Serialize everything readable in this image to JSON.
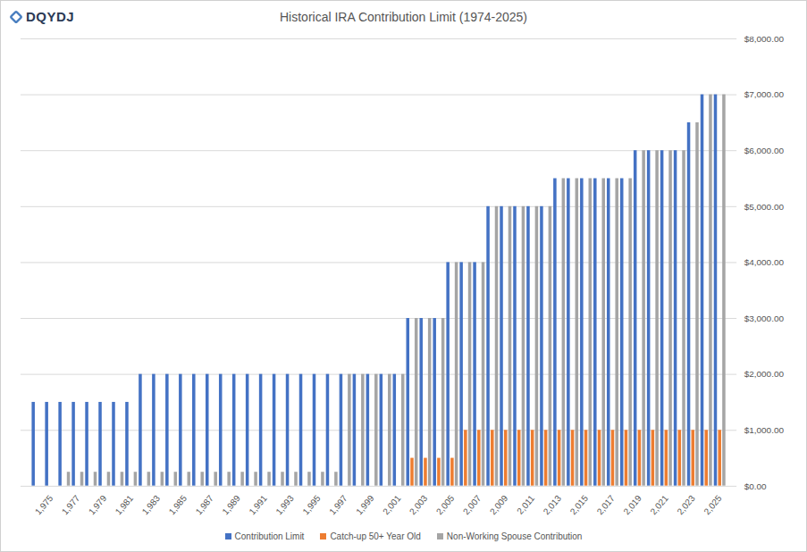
{
  "chart_data": {
    "type": "bar",
    "title": "Historical IRA Contribution Limit (1974-2025)",
    "logo": "DQYDJ",
    "categories": [
      null,
      1975,
      null,
      1977,
      null,
      1979,
      null,
      1981,
      null,
      1983,
      null,
      1985,
      null,
      1987,
      null,
      1989,
      null,
      1991,
      null,
      1993,
      null,
      1995,
      null,
      1997,
      null,
      1999,
      null,
      2001,
      null,
      2003,
      null,
      2005,
      null,
      2007,
      null,
      2009,
      null,
      2011,
      null,
      2013,
      null,
      2015,
      null,
      2017,
      null,
      2019,
      null,
      2021,
      null,
      2023,
      null,
      2025
    ],
    "series": [
      {
        "name": "Contribution Limit",
        "color": "#4472c4",
        "values": [
          1500,
          1500,
          1500,
          1500,
          1500,
          1500,
          1500,
          1500,
          2000,
          2000,
          2000,
          2000,
          2000,
          2000,
          2000,
          2000,
          2000,
          2000,
          2000,
          2000,
          2000,
          2000,
          2000,
          2000,
          2000,
          2000,
          2000,
          2000,
          3000,
          3000,
          3000,
          4000,
          4000,
          4000,
          5000,
          5000,
          5000,
          5000,
          5000,
          5500,
          5500,
          5500,
          5500,
          5500,
          5500,
          6000,
          6000,
          6000,
          6000,
          6500,
          7000,
          7000
        ]
      },
      {
        "name": "Catch-up 50+ Year Old",
        "color": "#ed7d31",
        "values": [
          null,
          null,
          null,
          null,
          null,
          null,
          null,
          null,
          null,
          null,
          null,
          null,
          null,
          null,
          null,
          null,
          null,
          null,
          null,
          null,
          null,
          null,
          null,
          null,
          null,
          null,
          null,
          null,
          500,
          500,
          500,
          500,
          1000,
          1000,
          1000,
          1000,
          1000,
          1000,
          1000,
          1000,
          1000,
          1000,
          1000,
          1000,
          1000,
          1000,
          1000,
          1000,
          1000,
          1000,
          1000,
          1000
        ]
      },
      {
        "name": "Non-Working Spouse Contribution",
        "color": "#a5a5a5",
        "values": [
          null,
          null,
          250,
          250,
          250,
          250,
          250,
          250,
          250,
          250,
          250,
          250,
          250,
          250,
          250,
          250,
          250,
          250,
          250,
          250,
          250,
          250,
          250,
          2000,
          2000,
          2000,
          2000,
          2000,
          3000,
          3000,
          3000,
          4000,
          4000,
          4000,
          5000,
          5000,
          5000,
          5000,
          5000,
          5500,
          5500,
          5500,
          5500,
          5500,
          5500,
          6000,
          6000,
          6000,
          6000,
          6500,
          7000,
          7000
        ]
      }
    ],
    "ylim": [
      0,
      8000
    ],
    "yticks": [
      {
        "value": 0,
        "label": "$0.00"
      },
      {
        "value": 1000,
        "label": "$1,000.00"
      },
      {
        "value": 2000,
        "label": "$2,000.00"
      },
      {
        "value": 3000,
        "label": "$3,000.00"
      },
      {
        "value": 4000,
        "label": "$4,000.00"
      },
      {
        "value": 5000,
        "label": "$5,000.00"
      },
      {
        "value": 6000,
        "label": "$6,000.00"
      },
      {
        "value": 7000,
        "label": "$7,000.00"
      },
      {
        "value": 8000,
        "label": "$8,000.00"
      }
    ],
    "grid": true,
    "legend": "bottom"
  }
}
